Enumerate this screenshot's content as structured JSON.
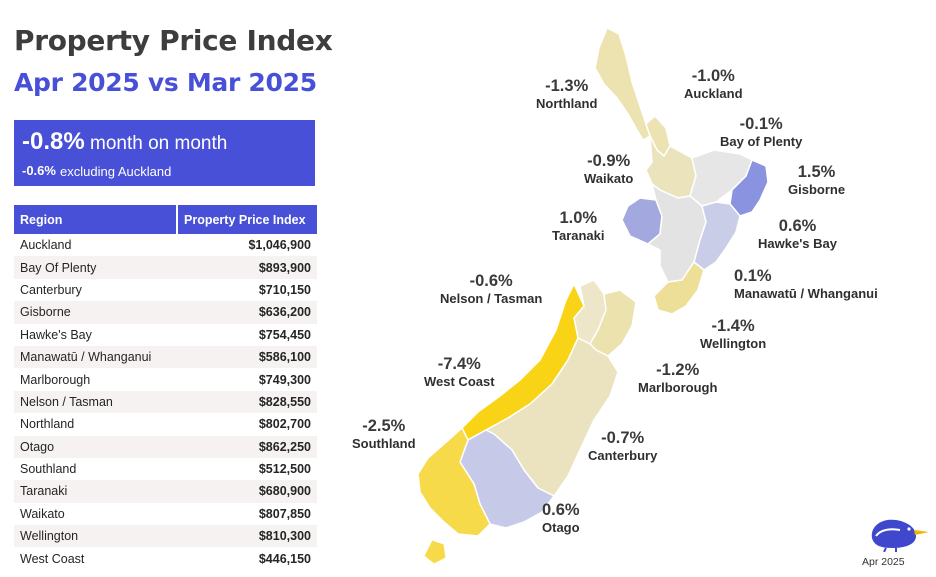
{
  "header": {
    "title": "Property Price Index",
    "subtitle": "Apr 2025 vs Mar 2025"
  },
  "summary": {
    "headline_value": "-0.8%",
    "headline_label": "month on month",
    "secondary_value": "-0.6%",
    "secondary_label": "excluding Auckland"
  },
  "table": {
    "columns": [
      "Region",
      "Property Price Index"
    ],
    "rows": [
      {
        "region": "Auckland",
        "value": "$1,046,900"
      },
      {
        "region": "Bay Of Plenty",
        "value": "$893,900"
      },
      {
        "region": "Canterbury",
        "value": "$710,150"
      },
      {
        "region": "Gisborne",
        "value": "$636,200"
      },
      {
        "region": "Hawke's Bay",
        "value": "$754,450"
      },
      {
        "region": "Manawatū / Whanganui",
        "value": "$586,100"
      },
      {
        "region": "Marlborough",
        "value": "$749,300"
      },
      {
        "region": "Nelson / Tasman",
        "value": "$828,550"
      },
      {
        "region": "Northland",
        "value": "$802,700"
      },
      {
        "region": "Otago",
        "value": "$862,250"
      },
      {
        "region": "Southland",
        "value": "$512,500"
      },
      {
        "region": "Taranaki",
        "value": "$680,900"
      },
      {
        "region": "Waikato",
        "value": "$807,850"
      },
      {
        "region": "Wellington",
        "value": "$810,300"
      },
      {
        "region": "West Coast",
        "value": "$446,150"
      }
    ]
  },
  "map": {
    "regions": [
      {
        "key": "northland",
        "name": "Northland",
        "change": "-1.3%",
        "color": "#ede3b0"
      },
      {
        "key": "auckland",
        "name": "Auckland",
        "change": "-1.0%",
        "color": "#ece2b2"
      },
      {
        "key": "bay-of-plenty",
        "name": "Bay of Plenty",
        "change": "-0.1%",
        "color": "#e6e6e6"
      },
      {
        "key": "gisborne",
        "name": "Gisborne",
        "change": "1.5%",
        "color": "#8a93e0"
      },
      {
        "key": "waikato",
        "name": "Waikato",
        "change": "-0.9%",
        "color": "#ebe3bc"
      },
      {
        "key": "taranaki",
        "name": "Taranaki",
        "change": "1.0%",
        "color": "#a3a9df"
      },
      {
        "key": "hawkes-bay",
        "name": "Hawke's Bay",
        "change": "0.6%",
        "color": "#c9cde8"
      },
      {
        "key": "manawatu",
        "name": "Manawatū / Whanganui",
        "change": "0.1%",
        "color": "#e3e3e3"
      },
      {
        "key": "wellington",
        "name": "Wellington",
        "change": "-1.4%",
        "color": "#eedf98"
      },
      {
        "key": "nelson",
        "name": "Nelson / Tasman",
        "change": "-0.6%",
        "color": "#ede6c8"
      },
      {
        "key": "marlborough",
        "name": "Marlborough",
        "change": "-1.2%",
        "color": "#ece2ad"
      },
      {
        "key": "west-coast",
        "name": "West Coast",
        "change": "-7.4%",
        "color": "#f9d315"
      },
      {
        "key": "canterbury",
        "name": "Canterbury",
        "change": "-0.7%",
        "color": "#ebe2c0"
      },
      {
        "key": "southland",
        "name": "Southland",
        "change": "-2.5%",
        "color": "#f6da4a"
      },
      {
        "key": "otago",
        "name": "Otago",
        "change": "0.6%",
        "color": "#c6cae8"
      }
    ]
  },
  "footer": {
    "logo_icon": "kiwi-bird-icon",
    "date": "Apr 2025"
  }
}
